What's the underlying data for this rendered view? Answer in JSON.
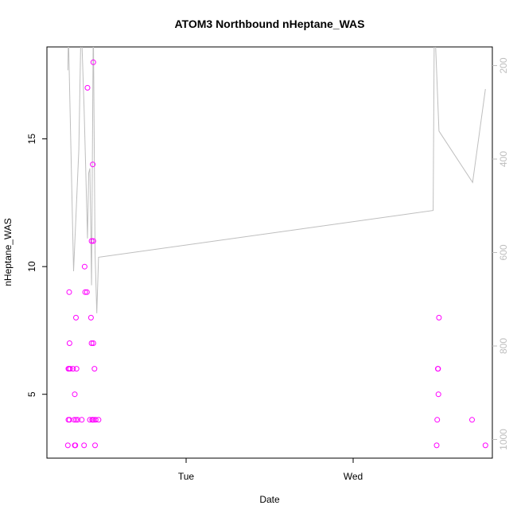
{
  "chart_data": {
    "type": "scatter",
    "title": "ATOM3 Northbound nHeptane_WAS",
    "xlabel": "Date",
    "ylabel": "nHeptane_WAS",
    "x_ticks": [
      "Tue",
      "Wed"
    ],
    "y_ticks": [
      5,
      10,
      15
    ],
    "y2_ticks": [
      200,
      400,
      600,
      800,
      1000
    ],
    "ylim": [
      2.5,
      18.6
    ],
    "y2lim": [
      1040,
      160
    ],
    "xlim": [
      "Mon 04:00",
      "Wed 20:00"
    ],
    "grid": false,
    "legend": "none",
    "series": [
      {
        "marker": "open-circle",
        "color": "#ff00ff",
        "axis": "left",
        "points": [
          [
            "Mon 07:00",
            3
          ],
          [
            "Mon 07:05",
            4
          ],
          [
            "Mon 07:05",
            6
          ],
          [
            "Mon 07:10",
            6
          ],
          [
            "Mon 07:12",
            9
          ],
          [
            "Mon 07:15",
            7
          ],
          [
            "Mon 07:15",
            4
          ],
          [
            "Mon 07:20",
            6
          ],
          [
            "Mon 07:45",
            6
          ],
          [
            "Mon 07:55",
            4
          ],
          [
            "Mon 08:00",
            3
          ],
          [
            "Mon 08:00",
            5
          ],
          [
            "Mon 08:05",
            3
          ],
          [
            "Mon 08:10",
            4
          ],
          [
            "Mon 08:10",
            8
          ],
          [
            "Mon 08:15",
            6
          ],
          [
            "Mon 08:25",
            4
          ],
          [
            "Mon 09:00",
            4
          ],
          [
            "Mon 09:20",
            3
          ],
          [
            "Mon 09:25",
            10
          ],
          [
            "Mon 09:30",
            9
          ],
          [
            "Mon 09:45",
            9
          ],
          [
            "Mon 09:50",
            17
          ],
          [
            "Mon 10:10",
            4
          ],
          [
            "Mon 10:20",
            8
          ],
          [
            "Mon 10:25",
            7
          ],
          [
            "Mon 10:25",
            11
          ],
          [
            "Mon 10:30",
            4
          ],
          [
            "Mon 10:35",
            4
          ],
          [
            "Mon 10:35",
            14
          ],
          [
            "Mon 10:40",
            7
          ],
          [
            "Mon 10:40",
            11
          ],
          [
            "Mon 10:40",
            18
          ],
          [
            "Mon 10:45",
            4
          ],
          [
            "Mon 10:50",
            6
          ],
          [
            "Mon 10:55",
            3
          ],
          [
            "Mon 11:00",
            4
          ],
          [
            "Mon 11:25",
            4
          ],
          [
            "Wed 12:00",
            3
          ],
          [
            "Wed 12:05",
            4
          ],
          [
            "Wed 12:10",
            6
          ],
          [
            "Wed 12:12",
            6
          ],
          [
            "Wed 12:15",
            5
          ],
          [
            "Wed 12:20",
            8
          ],
          [
            "Wed 17:05",
            4
          ],
          [
            "Wed 19:00",
            3
          ]
        ]
      },
      {
        "marker": "line",
        "color": "#bebebe",
        "axis": "right",
        "points": [
          [
            "Mon 07:00",
            210
          ],
          [
            "Mon 07:05",
            130
          ],
          [
            "Mon 07:50",
            640
          ],
          [
            "Mon 08:35",
            380
          ],
          [
            "Mon 08:55",
            100
          ],
          [
            "Mon 09:20",
            290
          ],
          [
            "Mon 09:35",
            430
          ],
          [
            "Mon 09:50",
            570
          ],
          [
            "Mon 10:00",
            430
          ],
          [
            "Mon 10:10",
            420
          ],
          [
            "Mon 10:25",
            670
          ],
          [
            "Mon 10:40",
            100
          ],
          [
            "Mon 10:55",
            600
          ],
          [
            "Mon 11:10",
            730
          ],
          [
            "Mon 11:25",
            610
          ],
          [
            "Wed 11:30",
            510
          ],
          [
            "Wed 11:40",
            90
          ],
          [
            "Wed 12:20",
            340
          ],
          [
            "Wed 17:10",
            450
          ],
          [
            "Wed 19:00",
            250
          ]
        ]
      }
    ]
  }
}
